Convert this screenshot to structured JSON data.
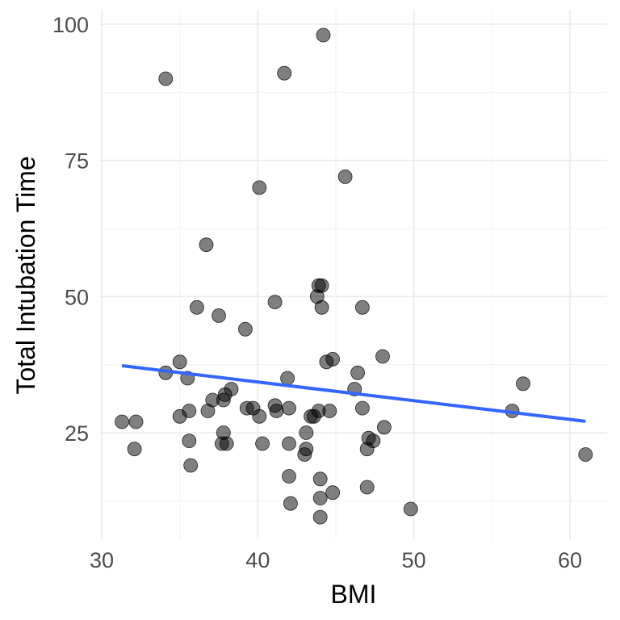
{
  "chart_data": {
    "type": "scatter",
    "title": "",
    "xlabel": "BMI",
    "ylabel": "Total Intubation Time",
    "xlim": [
      30,
      62.5
    ],
    "ylim": [
      5,
      102
    ],
    "x_ticks": [
      30,
      40,
      50,
      60
    ],
    "x_tick_labels": [
      "30",
      "40",
      "50",
      "60"
    ],
    "y_ticks": [
      25,
      50,
      75,
      100
    ],
    "y_tick_labels": [
      "25",
      "50",
      "75",
      "100"
    ],
    "grid": true,
    "points": [
      [
        44.2,
        98
      ],
      [
        34.1,
        90
      ],
      [
        41.7,
        91
      ],
      [
        45.6,
        72
      ],
      [
        40.1,
        70
      ],
      [
        36.7,
        59.5
      ],
      [
        43.9,
        52
      ],
      [
        44.1,
        52
      ],
      [
        43.8,
        50
      ],
      [
        41.1,
        49
      ],
      [
        44.1,
        48
      ],
      [
        36.1,
        48
      ],
      [
        46.7,
        48
      ],
      [
        37.5,
        46.5
      ],
      [
        39.2,
        44
      ],
      [
        44.8,
        38.5
      ],
      [
        48,
        39
      ],
      [
        35,
        38
      ],
      [
        44.4,
        38
      ],
      [
        34.1,
        36
      ],
      [
        46.4,
        36
      ],
      [
        35.5,
        35
      ],
      [
        41.9,
        35
      ],
      [
        57,
        34
      ],
      [
        38.3,
        33
      ],
      [
        46.2,
        33
      ],
      [
        37.9,
        32
      ],
      [
        37.1,
        31
      ],
      [
        37.8,
        31
      ],
      [
        41.1,
        30
      ],
      [
        36.8,
        29
      ],
      [
        35.6,
        29
      ],
      [
        39.3,
        29.5
      ],
      [
        39.7,
        29.5
      ],
      [
        41.2,
        29
      ],
      [
        42,
        29.5
      ],
      [
        43.9,
        29
      ],
      [
        44.6,
        29
      ],
      [
        46.7,
        29.5
      ],
      [
        56.3,
        29
      ],
      [
        35,
        28
      ],
      [
        40.1,
        28
      ],
      [
        43.4,
        28
      ],
      [
        43.6,
        28
      ],
      [
        31.3,
        27
      ],
      [
        32.2,
        27
      ],
      [
        48.1,
        26
      ],
      [
        43.1,
        25
      ],
      [
        37.8,
        25
      ],
      [
        47.1,
        24
      ],
      [
        47.4,
        23.5
      ],
      [
        35.6,
        23.5
      ],
      [
        37.7,
        23
      ],
      [
        38,
        23
      ],
      [
        40.3,
        23
      ],
      [
        42,
        23
      ],
      [
        32.1,
        22
      ],
      [
        43.1,
        22
      ],
      [
        47,
        22
      ],
      [
        43,
        21
      ],
      [
        61,
        21
      ],
      [
        35.7,
        19
      ],
      [
        42,
        17
      ],
      [
        44,
        16.5
      ],
      [
        47,
        15
      ],
      [
        44.8,
        14
      ],
      [
        44,
        13
      ],
      [
        42.1,
        12
      ],
      [
        49.8,
        11
      ],
      [
        44,
        9.5
      ]
    ],
    "point_color": "#000000",
    "point_opacity": 0.5,
    "trend_line": {
      "method": "linear",
      "color": "#3366ff",
      "x": [
        31.3,
        61
      ],
      "y": [
        37.3,
        27.1
      ]
    }
  }
}
